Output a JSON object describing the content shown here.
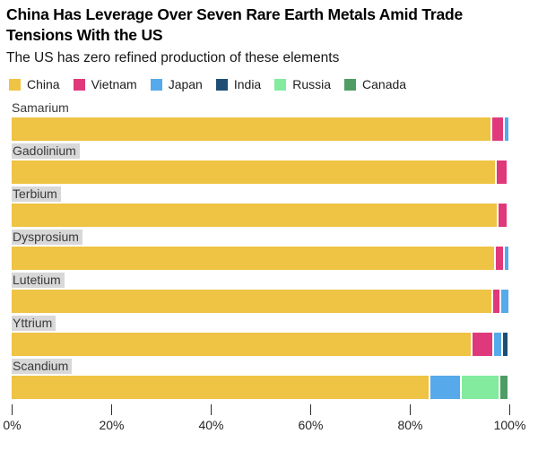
{
  "header": {
    "title_line1": "China Has Leverage Over Seven Rare Earth Metals Amid Trade",
    "title_line2": "Tensions With the US",
    "subtitle": "The US has zero refined production of these elements"
  },
  "legend": {
    "position": "top",
    "entries": [
      {
        "label": "China",
        "color": "#EFC343"
      },
      {
        "label": "Vietnam",
        "color": "#E0397B"
      },
      {
        "label": "Japan",
        "color": "#56A9EA"
      },
      {
        "label": "India",
        "color": "#1E4E73"
      },
      {
        "label": "Russia",
        "color": "#82EB9E"
      },
      {
        "label": "Canada",
        "color": "#4F9C64"
      }
    ]
  },
  "chart_data": {
    "type": "bar",
    "orientation": "horizontal",
    "stacked": true,
    "unit": "%",
    "title": "China Has Leverage Over Seven Rare Earth Metals Amid Trade Tensions With the US",
    "subtitle": "The US has zero refined production of these elements",
    "categories": [
      "Samarium",
      "Gadolinium",
      "Terbium",
      "Dysprosium",
      "Lutetium",
      "Yttrium",
      "Scandium"
    ],
    "series": [
      {
        "name": "China",
        "color": "#EFC343",
        "values": [
          97.0,
          98.0,
          98.3,
          97.8,
          97.3,
          93.0,
          84.5
        ]
      },
      {
        "name": "Vietnam",
        "color": "#E0397B",
        "values": [
          2.2,
          2.0,
          1.7,
          1.4,
          1.2,
          4.0,
          0
        ]
      },
      {
        "name": "Japan",
        "color": "#56A9EA",
        "values": [
          0.8,
          0,
          0,
          0.8,
          1.5,
          1.5,
          6.0
        ]
      },
      {
        "name": "India",
        "color": "#1E4E73",
        "values": [
          0,
          0,
          0,
          0,
          0,
          1.0,
          0
        ]
      },
      {
        "name": "Russia",
        "color": "#82EB9E",
        "values": [
          0,
          0,
          0,
          0,
          0,
          0,
          7.5
        ]
      },
      {
        "name": "Canada",
        "color": "#4F9C64",
        "values": [
          0,
          0,
          0,
          0,
          0,
          0,
          1.5
        ]
      }
    ],
    "xlim": [
      0,
      100
    ],
    "x_ticks": [
      "0%",
      "20%",
      "40%",
      "60%",
      "80%",
      "100%"
    ],
    "grid": false,
    "legend_position": "top",
    "category_label_highlighted": [
      "Gadolinium",
      "Terbium",
      "Dysprosium",
      "Lutetium",
      "Yttrium",
      "Scandium"
    ]
  }
}
